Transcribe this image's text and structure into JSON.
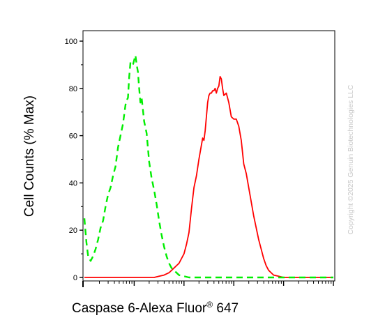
{
  "chart_data": {
    "type": "line",
    "xlabel": {
      "text": "Caspase 6-Alexa Fluor",
      "superscript": "®",
      "suffix": " 647"
    },
    "ylabel": "Cell Counts (% Max)",
    "ylim": [
      0,
      100
    ],
    "yticks": [
      "0",
      "20",
      "40",
      "60",
      "80",
      "100"
    ],
    "xlim": [
      0,
      100
    ],
    "x_scale": "log (5 decades, unlabeled)",
    "grid": false,
    "legend": "none",
    "watermark": "Copyright ©2025 Genuin Biotechnologies LLC",
    "colors": {
      "series_red": "#ff0000",
      "series_green": "#00ee00",
      "axis": "#000000",
      "watermark": "#c8c8c8"
    },
    "series": [
      {
        "color": "#ff0000",
        "style": "solid",
        "x": [
          0,
          4,
          8,
          12,
          16,
          20,
          24,
          28,
          30,
          32,
          34,
          36,
          38,
          39,
          40,
          41,
          42,
          43,
          44,
          45,
          46,
          47,
          47.5,
          48,
          48.5,
          49,
          49.5,
          50,
          50.5,
          51,
          51.5,
          52,
          52.5,
          53,
          53.5,
          54,
          54.5,
          55,
          55.5,
          56,
          57,
          58,
          59,
          60,
          61,
          62,
          63,
          64,
          65,
          66,
          67,
          68,
          69,
          70,
          71,
          72,
          73,
          74,
          75,
          76,
          78,
          80,
          84,
          90,
          100
        ],
        "y": [
          0,
          0,
          0,
          0,
          0,
          0,
          0,
          0,
          0.5,
          1,
          2,
          4,
          6,
          8,
          10,
          14,
          19,
          29,
          38,
          43,
          50,
          56,
          59,
          58,
          62,
          68,
          74,
          77,
          78,
          78,
          79,
          79,
          80,
          78,
          80,
          81,
          85,
          84,
          80,
          77,
          78,
          74,
          68,
          67,
          67,
          64,
          58,
          48,
          44,
          38,
          32,
          26,
          21,
          16,
          12,
          8,
          5,
          3,
          2,
          1,
          0.5,
          0,
          0,
          0,
          0
        ]
      },
      {
        "color": "#00ee00",
        "style": "dashed",
        "x": [
          0,
          0.8,
          1.5,
          2.5,
          3.5,
          4.5,
          5.5,
          6.5,
          7.5,
          8.5,
          9.5,
          10.5,
          11.5,
          12.5,
          13.5,
          14.5,
          15.5,
          16.5,
          17,
          17.5,
          18,
          18.5,
          19,
          19.5,
          20,
          20.5,
          21,
          21.5,
          22,
          22.5,
          23,
          24,
          25,
          26,
          27,
          28,
          29,
          30,
          31,
          32,
          33,
          34,
          35,
          36,
          37,
          38,
          40,
          42,
          44,
          46,
          48,
          50,
          55,
          60,
          65,
          70,
          80,
          90,
          100
        ],
        "y": [
          25,
          15,
          9,
          7,
          9,
          12,
          16,
          21,
          24,
          30,
          35,
          38,
          43,
          47,
          55,
          60,
          65,
          73,
          75,
          76,
          85,
          91,
          90,
          90,
          92,
          94,
          90,
          87,
          80,
          74,
          76,
          66,
          61,
          49,
          42,
          37,
          31,
          24,
          18,
          13,
          9,
          6,
          4,
          3,
          2,
          1,
          0.5,
          0,
          0,
          0,
          0,
          0,
          0,
          0,
          0,
          0,
          0,
          0,
          0
        ]
      }
    ]
  }
}
